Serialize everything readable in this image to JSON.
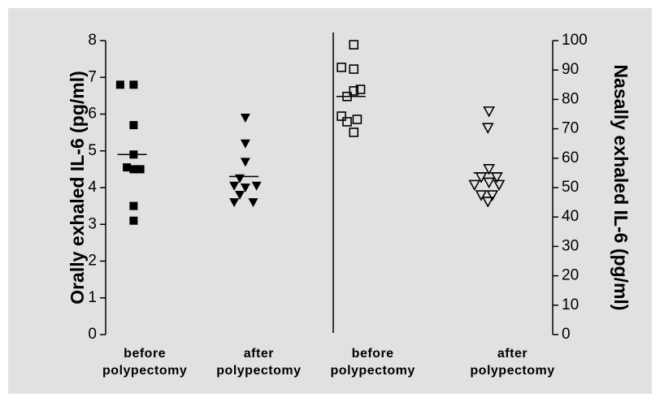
{
  "chart_data": {
    "type": "scatter",
    "y_label": "Orally exhaled IL-6 (pg/ml)",
    "y2_label": "Nasally exhaled IL-6 (pg/ml)",
    "xlim": [
      0,
      4
    ],
    "xticks": [
      {
        "value": 0.35,
        "label": "before polypectomy"
      },
      {
        "value": 1.37,
        "label": "after polypectomy"
      },
      {
        "value": 2.39,
        "label": "before polypectomy"
      },
      {
        "value": 3.64,
        "label": "after polypectomy"
      }
    ],
    "ylim": [
      0,
      8
    ],
    "yticks": [
      0,
      1,
      2,
      3,
      4,
      5,
      6,
      7,
      8
    ],
    "y2lim": [
      0,
      100
    ],
    "y2ticks": [
      0,
      10,
      20,
      30,
      40,
      50,
      60,
      70,
      80,
      90,
      100
    ],
    "color": "#000000",
    "series": [
      {
        "marker": "square",
        "filled": true,
        "axis": "y",
        "mean": 4.9,
        "x": [
          0.13,
          0.25,
          0.25,
          0.25,
          0.19,
          0.25,
          0.31,
          0.25,
          0.25
        ],
        "values": [
          6.8,
          6.8,
          5.7,
          4.9,
          4.55,
          4.5,
          4.5,
          3.5,
          3.1
        ]
      },
      {
        "marker": "triangle-down",
        "filled": true,
        "axis": "y",
        "mean": 4.3,
        "x": [
          1.25,
          1.25,
          1.25,
          1.2,
          1.15,
          1.25,
          1.35,
          1.2,
          1.15,
          1.32
        ],
        "values": [
          5.9,
          5.2,
          4.7,
          4.25,
          4.05,
          4.0,
          4.05,
          3.8,
          3.6,
          3.6
        ]
      },
      {
        "marker": "square",
        "filled": false,
        "axis": "y2",
        "mean": 81,
        "x": [
          2.22,
          2.11,
          2.22,
          2.22,
          2.28,
          2.16,
          2.11,
          2.25,
          2.16,
          2.22
        ],
        "values": [
          98.6,
          90.9,
          90.3,
          82.9,
          83.4,
          81,
          74.3,
          73.2,
          72.4,
          68.8
        ]
      },
      {
        "marker": "triangle-down",
        "filled": false,
        "axis": "y2",
        "mean": 55,
        "x": [
          3.43,
          3.42,
          3.43,
          3.36,
          3.5,
          3.3,
          3.43,
          3.52,
          3.36,
          3.46,
          3.42
        ],
        "values": [
          76,
          70.4,
          56.4,
          53.6,
          53.6,
          51,
          51.8,
          51,
          47.5,
          47.5,
          45.3
        ]
      }
    ]
  }
}
